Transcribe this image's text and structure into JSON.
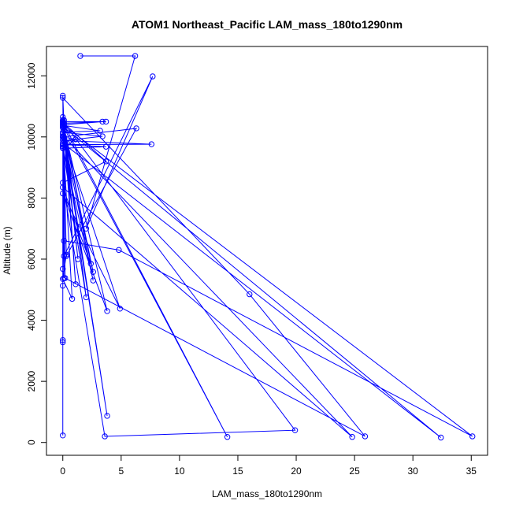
{
  "chart_data": {
    "type": "line",
    "title": "ATOM1 Northeast_Pacific LAM_mass_180to1290nm",
    "xlabel": "LAM_mass_180to1290nm",
    "ylabel": "Altitude (m)",
    "xlim": [
      -1.4,
      36.4
    ],
    "ylim": [
      -420,
      12960
    ],
    "x_ticks": [
      0,
      5,
      10,
      15,
      20,
      25,
      30,
      35
    ],
    "y_ticks": [
      0,
      2000,
      4000,
      6000,
      8000,
      10000,
      12000
    ],
    "grid": false,
    "series": [
      {
        "marker": "open-circle",
        "line": true,
        "color": "#0000ff",
        "points": [
          [
            1.5,
            12650
          ],
          [
            6.2,
            12650
          ],
          [
            2.0,
            7000
          ],
          [
            7.7,
            11980
          ],
          [
            0.1,
            6100
          ],
          [
            0.0,
            11350
          ],
          [
            0.1,
            10400
          ],
          [
            3.4,
            10500
          ],
          [
            0.0,
            10500
          ],
          [
            3.7,
            10500
          ],
          [
            0.1,
            10450
          ],
          [
            0.0,
            10380
          ],
          [
            3.2,
            10200
          ],
          [
            0.0,
            10150
          ],
          [
            3.4,
            10020
          ],
          [
            0.1,
            9880
          ],
          [
            7.6,
            9760
          ],
          [
            0.0,
            9750
          ],
          [
            3.7,
            9680
          ],
          [
            0.0,
            9630
          ],
          [
            1.1,
            9920
          ],
          [
            0.0,
            10000
          ],
          [
            6.3,
            10280
          ],
          [
            0.3,
            6100
          ],
          [
            0.0,
            11280
          ],
          [
            16.0,
            4850
          ],
          [
            25.9,
            200
          ],
          [
            0.2,
            5380
          ],
          [
            0.0,
            10400
          ],
          [
            35.1,
            200
          ],
          [
            4.8,
            6300
          ],
          [
            0.1,
            6600
          ],
          [
            0.0,
            9800
          ],
          [
            32.4,
            160
          ],
          [
            0.0,
            10350
          ],
          [
            2.6,
            5580
          ],
          [
            0.0,
            10020
          ],
          [
            4.9,
            4380
          ],
          [
            0.0,
            8150
          ],
          [
            3.8,
            4300
          ],
          [
            0.1,
            10300
          ],
          [
            14.1,
            180
          ],
          [
            0.0,
            10480
          ],
          [
            3.7,
            9200
          ],
          [
            0.0,
            8500
          ],
          [
            3.6,
            200
          ],
          [
            19.9,
            400
          ],
          [
            0.1,
            10450
          ],
          [
            2.0,
            4750
          ],
          [
            0.0,
            9650
          ],
          [
            2.6,
            5300
          ],
          [
            0.1,
            10000
          ],
          [
            24.8,
            180
          ],
          [
            0.0,
            8350
          ],
          [
            2.4,
            5850
          ],
          [
            0.0,
            10550
          ],
          [
            1.3,
            6000
          ],
          [
            0.1,
            9950
          ],
          [
            0.0,
            5130
          ],
          [
            0.1,
            10550
          ],
          [
            1.1,
            5180
          ],
          [
            0.0,
            10650
          ],
          [
            0.0,
            3350
          ],
          [
            0.0,
            3280
          ],
          [
            0.0,
            230
          ],
          [
            0.0,
            5680
          ],
          [
            0.0,
            10300
          ],
          [
            3.8,
            870
          ],
          [
            0.0,
            10100
          ],
          [
            0.8,
            4700
          ],
          [
            0.0,
            5350
          ],
          [
            0.3,
            6150
          ],
          [
            0.0,
            10000
          ],
          [
            0.0,
            9900
          ],
          [
            0.0,
            10450
          ],
          [
            0.1,
            5380
          ],
          [
            0.1,
            10200
          ],
          [
            0.0,
            9700
          ]
        ]
      }
    ]
  }
}
